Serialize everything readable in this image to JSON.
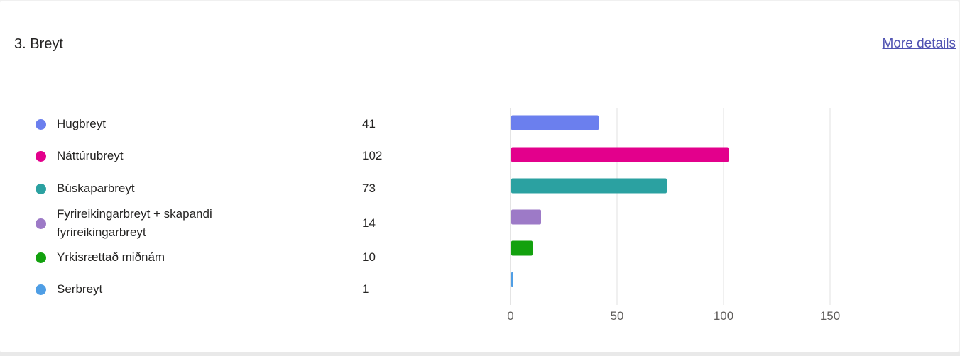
{
  "question": {
    "title": "3. Breyt",
    "more_details_label": "More details"
  },
  "colors": {
    "link": "#4f52b2",
    "gridline": "#e1e1e1",
    "axis": "#c8c8c8",
    "tick_text": "#605e5c"
  },
  "chart_data": {
    "type": "bar",
    "orientation": "horizontal",
    "categories": [
      "Hugbreyt",
      "Náttúrubreyt",
      "Búskaparbreyt",
      "Fyrireikingarbreyt + skapandi fyrireikingarbreyt",
      "Yrkisrættað miðnám",
      "Serbreyt"
    ],
    "values": [
      41,
      102,
      73,
      14,
      10,
      1
    ],
    "colors": [
      "#6b7fee",
      "#e3008c",
      "#2ba1a1",
      "#9d7ac7",
      "#13a10e",
      "#4f9ee5"
    ],
    "xlim": [
      0,
      180
    ],
    "xticks": [
      0,
      50,
      100,
      150
    ],
    "grid": true,
    "legend": "left"
  }
}
